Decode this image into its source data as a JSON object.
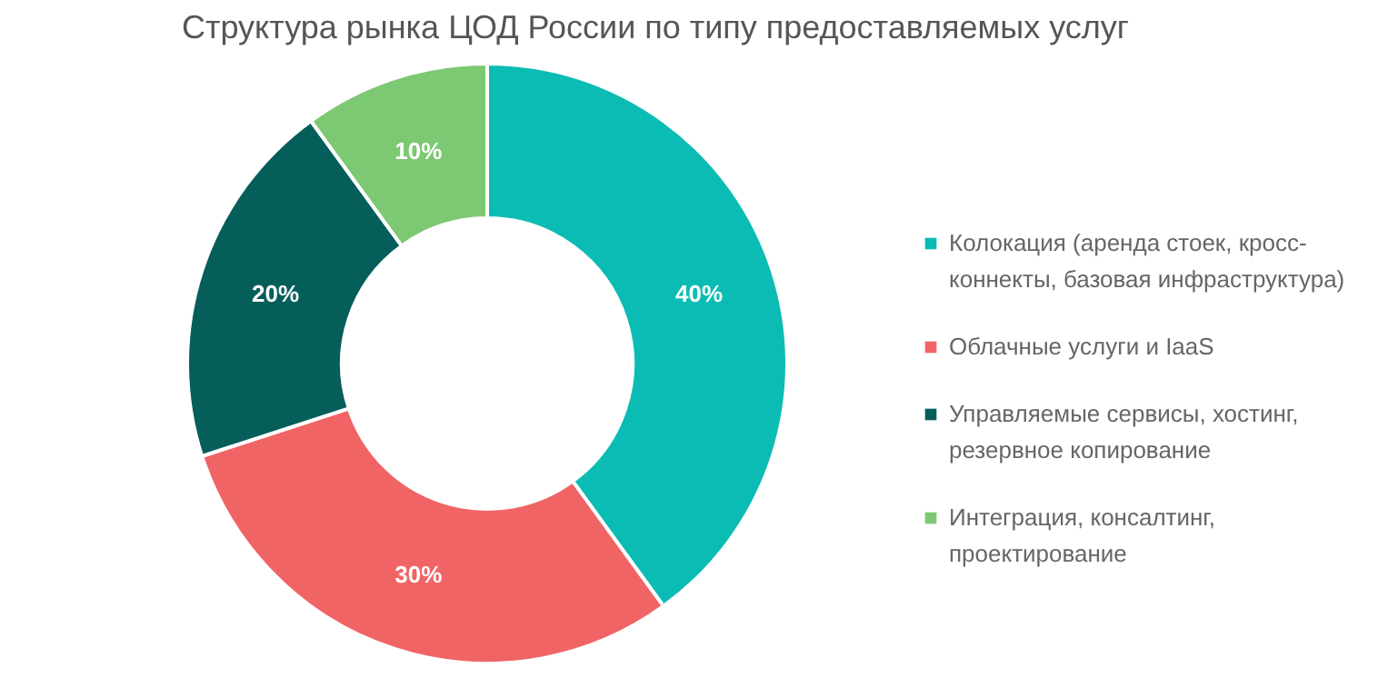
{
  "chart_data": {
    "type": "donut",
    "title": "Структура рынка ЦОД России по типу предоставляемых услуг",
    "categories": [
      "Колокация (аренда стоек, кросс-коннекты, базовая инфраструктура)",
      "Облачные услуги и IaaS",
      "Управляемые сервисы, хостинг, резервное копирование",
      "Интеграция, консалтинг, проектирование"
    ],
    "values": [
      40,
      30,
      20,
      10
    ],
    "colors": [
      "#0bbcb4",
      "#f06466",
      "#065e5a",
      "#7dc873"
    ],
    "value_labels": [
      "40%",
      "30%",
      "20%",
      "10%"
    ],
    "legend": "right"
  }
}
